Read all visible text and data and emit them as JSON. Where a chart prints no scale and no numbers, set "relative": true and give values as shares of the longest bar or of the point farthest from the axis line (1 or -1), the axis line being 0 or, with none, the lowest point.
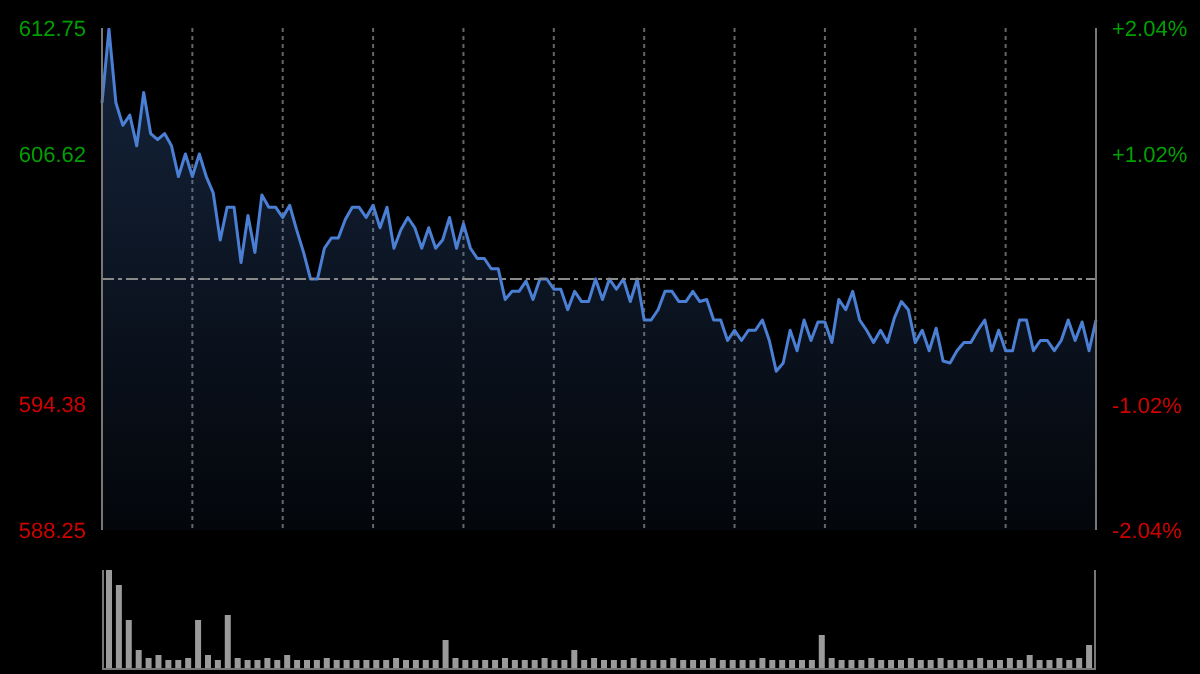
{
  "chart_data": [
    {
      "type": "area",
      "categories": [
        null,
        null,
        null,
        null,
        null,
        null,
        null,
        null,
        null,
        null,
        null,
        null,
        null,
        null,
        null,
        null,
        null,
        null,
        null,
        null,
        null,
        null,
        null,
        null,
        null,
        null,
        null,
        null,
        null,
        null,
        null,
        null,
        null,
        null,
        null,
        null,
        null,
        null,
        null,
        null,
        null,
        null,
        null,
        null,
        null,
        null,
        null,
        null,
        null,
        null,
        null,
        null,
        null,
        null,
        null,
        null,
        null,
        null,
        null,
        null,
        null,
        null,
        null,
        null,
        null,
        null,
        null,
        null,
        null,
        null,
        null,
        null,
        null,
        null,
        null,
        null,
        null,
        null,
        null,
        null,
        null,
        null,
        null,
        null,
        null,
        null,
        null,
        null,
        null,
        null,
        null,
        null,
        null,
        null,
        null,
        null,
        null,
        null,
        null,
        null,
        null,
        null,
        null,
        null,
        null,
        null,
        null,
        null,
        null,
        null,
        null,
        null,
        null,
        null,
        null,
        null,
        null,
        null,
        null,
        null,
        null,
        null,
        null,
        null,
        null,
        null,
        null,
        null,
        null,
        null,
        null,
        null,
        null,
        null,
        null,
        null,
        null,
        null,
        null,
        null,
        null,
        null,
        null,
        null
      ],
      "series": [
        {
          "color": "#4a7fd4",
          "values": [
            609.1,
            612.7,
            609.1,
            608.0,
            608.5,
            607.0,
            609.6,
            607.6,
            607.3,
            607.6,
            607.0,
            605.5,
            606.6,
            605.5,
            606.6,
            605.5,
            604.7,
            602.4,
            604.0,
            604.0,
            601.3,
            603.6,
            601.8,
            604.6,
            604.0,
            604.0,
            603.5,
            604.1,
            602.9,
            601.8,
            600.5,
            600.5,
            602.0,
            602.5,
            602.5,
            603.4,
            604.0,
            604.0,
            603.5,
            604.1,
            603.0,
            604.0,
            602.0,
            602.9,
            603.5,
            603.0,
            602.0,
            603.0,
            602.0,
            602.4,
            603.5,
            602.0,
            603.2,
            602.0,
            601.5,
            601.5,
            601.0,
            601.0,
            599.5,
            599.9,
            599.9,
            600.4,
            599.5,
            600.5,
            600.5,
            600.0,
            600.0,
            599.0,
            599.9,
            599.4,
            599.4,
            600.5,
            599.5,
            600.5,
            600.0,
            600.5,
            599.4,
            600.5,
            598.5,
            598.5,
            599.0,
            599.9,
            599.9,
            599.4,
            599.4,
            599.9,
            599.4,
            599.5,
            598.5,
            598.5,
            597.5,
            598.0,
            597.5,
            598.0,
            598.0,
            598.5,
            597.5,
            596.0,
            596.4,
            598.0,
            597.0,
            598.5,
            597.5,
            598.4,
            598.4,
            597.4,
            599.5,
            599.0,
            599.9,
            598.5,
            598.0,
            597.4,
            598.0,
            597.4,
            598.6,
            599.4,
            599.0,
            597.4,
            598.0,
            597.0,
            598.1,
            596.5,
            596.4,
            597.0,
            597.4,
            597.4,
            598.0,
            598.5,
            597.0,
            598.0,
            597.0,
            597.0,
            598.5,
            598.5,
            597.0,
            597.5,
            597.5,
            597.0,
            597.5,
            598.5,
            597.5,
            598.4,
            597.0,
            598.5
          ]
        }
      ],
      "ylim": [
        588.25,
        612.75
      ],
      "yticks": [
        612.75,
        606.62,
        594.38,
        588.25
      ],
      "y2lim": [
        -2.04,
        2.04
      ],
      "y2ticks": [
        {
          "value": 2.04,
          "label": "+2.04%"
        },
        {
          "value": 1.02,
          "label": "+1.02%"
        },
        {
          "value": -1.02,
          "label": "-1.02%"
        },
        {
          "value": -2.04,
          "label": "-2.04%"
        }
      ],
      "ref_lines": [
        {
          "axis": "y",
          "value": 600.5,
          "color": "#8a8a8a",
          "line_style": "dashed"
        }
      ],
      "grid": true,
      "tick_labels": "y"
    },
    {
      "type": "bar",
      "relative": true,
      "categories": [
        null,
        null,
        null,
        null,
        null,
        null,
        null,
        null,
        null,
        null,
        null,
        null,
        null,
        null,
        null,
        null,
        null,
        null,
        null,
        null,
        null,
        null,
        null,
        null,
        null,
        null,
        null,
        null,
        null,
        null,
        null,
        null,
        null,
        null,
        null,
        null,
        null,
        null,
        null,
        null,
        null,
        null,
        null,
        null,
        null,
        null,
        null,
        null,
        null,
        null,
        null,
        null,
        null,
        null,
        null,
        null,
        null,
        null,
        null,
        null,
        null,
        null,
        null,
        null,
        null,
        null,
        null,
        null,
        null,
        null,
        null,
        null,
        null,
        null,
        null,
        null,
        null,
        null,
        null,
        null,
        null,
        null,
        null,
        null,
        null,
        null,
        null,
        null,
        null,
        null,
        null,
        null,
        null,
        null,
        null,
        null,
        null,
        null,
        null,
        null
      ],
      "values": [
        1,
        0.85,
        0.5,
        0.2,
        0.12,
        0.15,
        0.1,
        0.1,
        0.12,
        0.5,
        0.15,
        0.1,
        0.55,
        0.12,
        0.1,
        0.1,
        0.12,
        0.1,
        0.15,
        0.1,
        0.1,
        0.1,
        0.12,
        0.1,
        0.1,
        0.1,
        0.1,
        0.1,
        0.1,
        0.12,
        0.1,
        0.1,
        0.1,
        0.1,
        0.3,
        0.12,
        0.1,
        0.1,
        0.1,
        0.1,
        0.12,
        0.1,
        0.1,
        0.1,
        0.12,
        0.1,
        0.1,
        0.2,
        0.1,
        0.12,
        0.1,
        0.1,
        0.1,
        0.12,
        0.1,
        0.1,
        0.1,
        0.12,
        0.1,
        0.1,
        0.1,
        0.12,
        0.1,
        0.1,
        0.1,
        0.1,
        0.12,
        0.1,
        0.1,
        0.1,
        0.1,
        0.1,
        0.35,
        0.12,
        0.1,
        0.1,
        0.1,
        0.12,
        0.1,
        0.1,
        0.1,
        0.12,
        0.1,
        0.1,
        0.12,
        0.1,
        0.1,
        0.1,
        0.12,
        0.1,
        0.1,
        0.12,
        0.1,
        0.15,
        0.1,
        0.1,
        0.12,
        0.1,
        0.12,
        0.25
      ],
      "color": "#9a9a9a",
      "tick_labels": false
    }
  ]
}
